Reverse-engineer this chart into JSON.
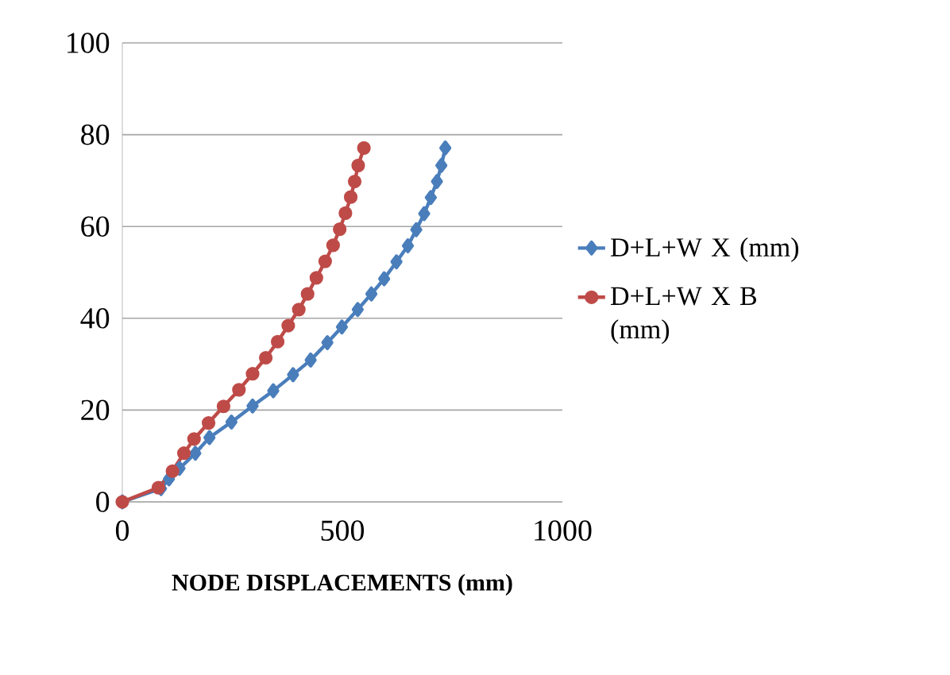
{
  "chart_data": {
    "type": "line",
    "xlabel": "NODE DISPLACEMENTS (mm)",
    "xlim": [
      0,
      1000
    ],
    "xticks": [
      0,
      500,
      1000
    ],
    "ylim": [
      0,
      100
    ],
    "yticks": [
      0,
      20,
      40,
      60,
      80,
      100
    ],
    "grid": "y",
    "legend": "right",
    "series": [
      {
        "name": "D+L+W X (mm)",
        "color": "#4a7ebb",
        "marker": "diamond",
        "x": [
          0,
          88,
          106,
          130,
          166,
          198,
          248,
          296,
          343,
          388,
          428,
          466,
          499,
          535,
          566,
          595,
          623,
          649,
          668,
          686,
          701,
          715,
          725,
          734
        ],
        "values": [
          0,
          2.9,
          5.0,
          7.3,
          10.6,
          14.0,
          17.4,
          20.9,
          24.2,
          27.7,
          30.9,
          34.7,
          38.1,
          41.9,
          45.3,
          48.6,
          52.3,
          55.8,
          59.3,
          62.8,
          66.3,
          69.8,
          73.3,
          77.1
        ]
      },
      {
        "name": "D+L+W X B (mm)",
        "color": "#be4b48",
        "marker": "circle",
        "x": [
          0,
          82,
          114,
          140,
          163,
          196,
          230,
          265,
          296,
          326,
          353,
          377,
          401,
          421,
          441,
          461,
          479,
          494,
          507,
          519,
          528,
          536,
          549
        ],
        "values": [
          0,
          3.1,
          6.7,
          10.6,
          13.7,
          17.2,
          20.8,
          24.4,
          27.9,
          31.4,
          34.9,
          38.4,
          41.9,
          45.3,
          48.8,
          52.4,
          55.9,
          59.4,
          62.9,
          66.4,
          69.8,
          73.3,
          77.1
        ]
      }
    ]
  }
}
